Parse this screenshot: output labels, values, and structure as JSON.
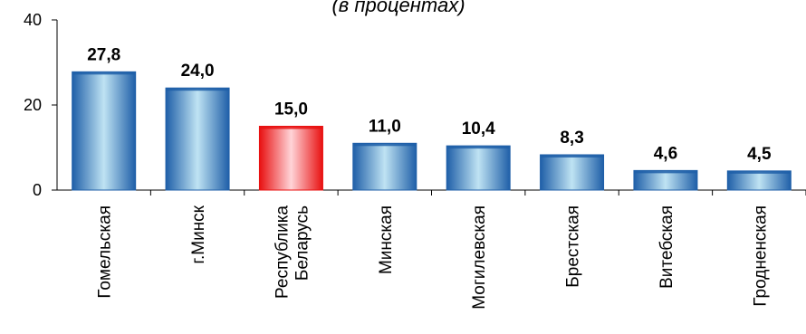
{
  "chart_data": {
    "type": "bar",
    "subtitle": "(в процентах)",
    "categories": [
      "Гомельская",
      "г.Минск",
      "Республика\nБеларусь",
      "Минская",
      "Могилевская",
      "Брестская",
      "Витебская",
      "Гродненская"
    ],
    "values": [
      27.8,
      24.0,
      15.0,
      11.0,
      10.4,
      8.3,
      4.6,
      4.5
    ],
    "data_labels": [
      "27,8",
      "24,0",
      "15,0",
      "11,0",
      "10,4",
      "8,3",
      "4,6",
      "4,5"
    ],
    "highlight_category": "Республика\nБеларусь",
    "y_ticks": [
      0,
      20,
      40
    ],
    "ylim": [
      0,
      40
    ],
    "xlabel": "",
    "ylabel": "",
    "grid": false,
    "legend": "none",
    "colors": {
      "bar_edge": "#1f5fa8",
      "bar_center": "#bfe3f3",
      "highlight_edge": "#e81010",
      "highlight_center": "#ffd4d8",
      "axis": "#000000"
    }
  }
}
